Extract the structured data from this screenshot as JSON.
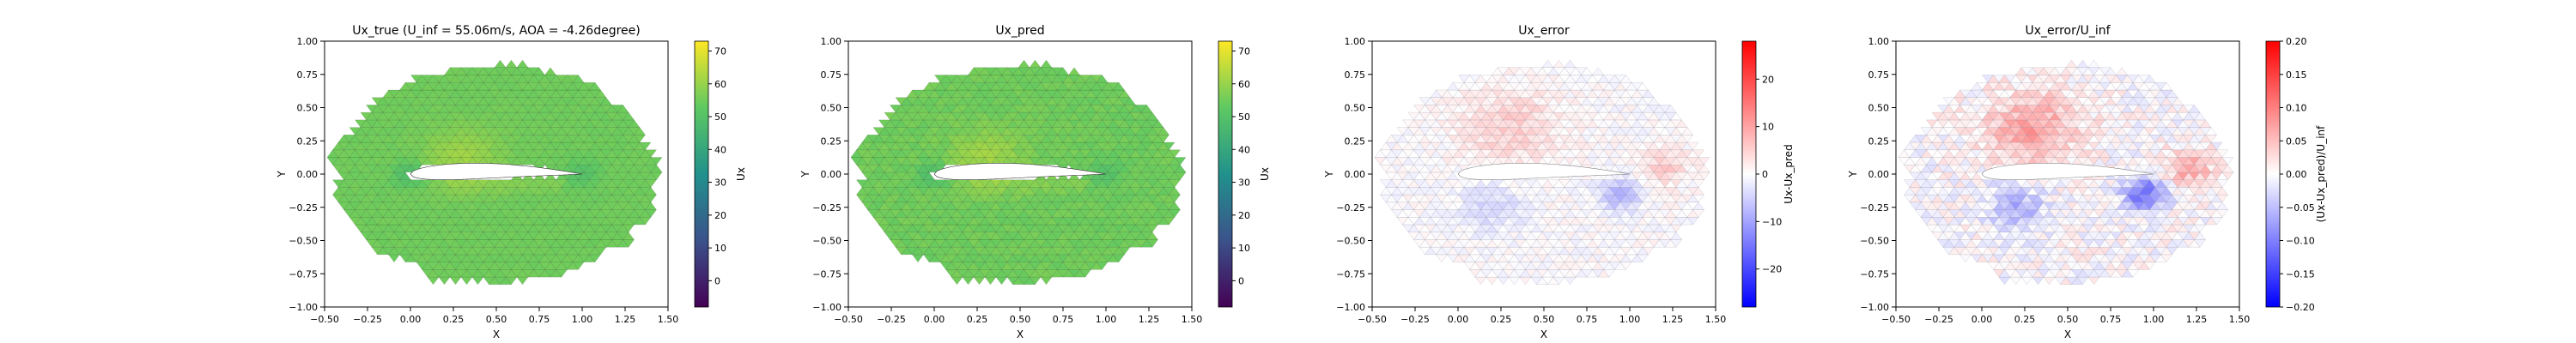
{
  "chart_data": [
    {
      "type": "heatmap",
      "title": "Ux_true (U_inf = 55.06m/s, AOA = -4.26degree)",
      "xlabel": "X",
      "ylabel": "Y",
      "xlim": [
        -0.5,
        1.5
      ],
      "ylim": [
        -1.0,
        1.0
      ],
      "xticks": [
        "−0.50",
        "−0.25",
        "0.00",
        "0.25",
        "0.50",
        "0.75",
        "1.00",
        "1.25",
        "1.50"
      ],
      "yticks": [
        "1.00",
        "0.75",
        "0.50",
        "0.25",
        "0.00",
        "−0.25",
        "−0.50",
        "−0.75",
        "−1.00"
      ],
      "colorbar": {
        "label": "Ux",
        "range": [
          -8,
          73
        ],
        "ticks": [
          "70",
          "60",
          "50",
          "40",
          "30",
          "20",
          "10",
          "0"
        ],
        "colormap": "viridis"
      },
      "field": "velocity magnitude on unstructured triangular mesh around airfoil; mostly ~55 with low-velocity wake near leading and trailing edges"
    },
    {
      "type": "heatmap",
      "title": "Ux_pred",
      "xlabel": "X",
      "ylabel": "Y",
      "xlim": [
        -0.5,
        1.5
      ],
      "ylim": [
        -1.0,
        1.0
      ],
      "xticks": [
        "−0.50",
        "−0.25",
        "0.00",
        "0.25",
        "0.50",
        "0.75",
        "1.00",
        "1.25",
        "1.50"
      ],
      "yticks": [
        "1.00",
        "0.75",
        "0.50",
        "0.25",
        "0.00",
        "−0.25",
        "−0.50",
        "−0.75",
        "−1.00"
      ],
      "colorbar": {
        "label": "Ux",
        "range": [
          -8,
          73
        ],
        "ticks": [
          "70",
          "60",
          "50",
          "40",
          "30",
          "20",
          "10",
          "0"
        ],
        "colormap": "viridis"
      }
    },
    {
      "type": "heatmap",
      "title": "Ux_error",
      "xlabel": "X",
      "ylabel": "Y",
      "xlim": [
        -0.5,
        1.5
      ],
      "ylim": [
        -1.0,
        1.0
      ],
      "xticks": [
        "−0.50",
        "−0.25",
        "0.00",
        "0.25",
        "0.50",
        "0.75",
        "1.00",
        "1.25",
        "1.50"
      ],
      "yticks": [
        "1.00",
        "0.75",
        "0.50",
        "0.25",
        "0.00",
        "−0.25",
        "−0.50",
        "−0.75",
        "−1.00"
      ],
      "colorbar": {
        "label": "Ux-Ux_pred",
        "range": [
          -28,
          28
        ],
        "ticks": [
          "20",
          "10",
          "0",
          "−10",
          "−20"
        ],
        "colormap": "bwr"
      }
    },
    {
      "type": "heatmap",
      "title": "Ux_error/U_inf",
      "xlabel": "X",
      "ylabel": "Y",
      "xlim": [
        -0.5,
        1.5
      ],
      "ylim": [
        -1.0,
        1.0
      ],
      "xticks": [
        "−0.50",
        "−0.25",
        "0.00",
        "0.25",
        "0.50",
        "0.75",
        "1.00",
        "1.25",
        "1.50"
      ],
      "yticks": [
        "1.00",
        "0.75",
        "0.50",
        "0.25",
        "0.00",
        "−0.25",
        "−0.50",
        "−0.75",
        "−1.00"
      ],
      "colorbar": {
        "label": "(Ux-Ux_pred)/U_inf",
        "range": [
          -0.2,
          0.2
        ],
        "ticks": [
          "0.20",
          "0.15",
          "0.10",
          "0.05",
          "0.00",
          "−0.05",
          "−0.10",
          "−0.15",
          "−0.20"
        ],
        "colormap": "bwr"
      }
    }
  ]
}
